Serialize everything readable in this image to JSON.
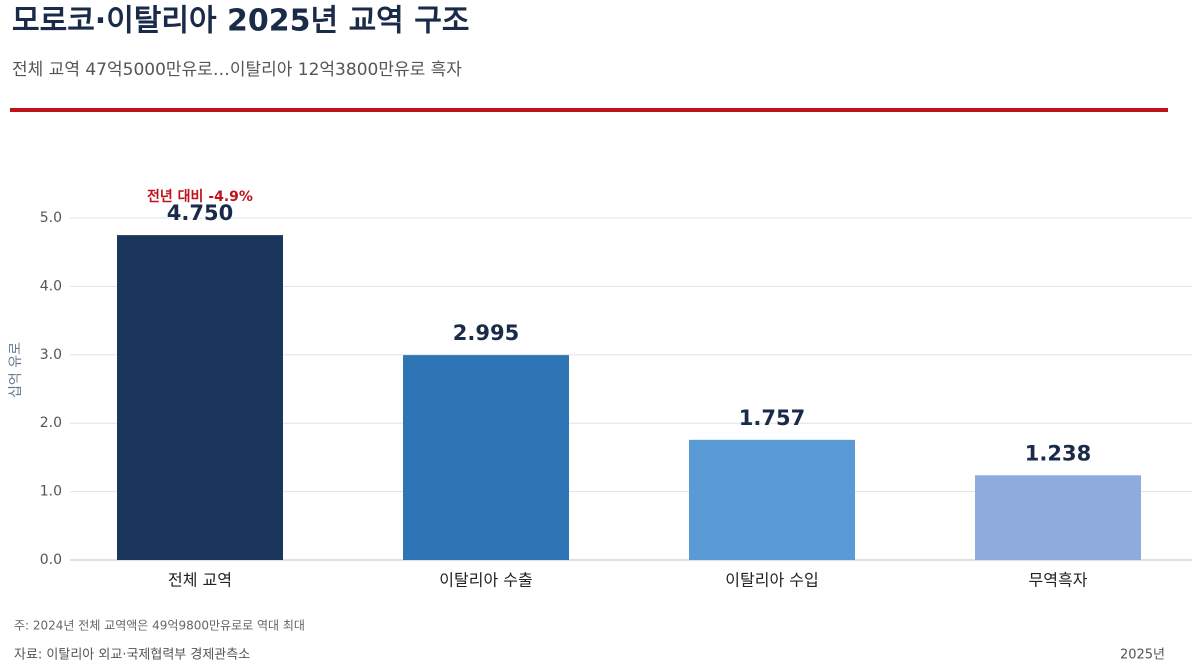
{
  "chart_data": {
    "type": "bar",
    "title": "모로코·이탈리아 2025년 교역 구조",
    "subtitle": "전체 교역 47억5000만유로…이탈리아 12억3800만유로 흑자",
    "y_label": "십억 유로",
    "categories": [
      "전체 교역",
      "이탈리아 수출",
      "이탈리아 수입",
      "무역흑자"
    ],
    "values": [
      4.75,
      2.995,
      1.757,
      1.238
    ],
    "value_labels": [
      "4.750",
      "2.995",
      "1.757",
      "1.238"
    ],
    "colors": [
      "#1b365d",
      "#2e75b6",
      "#5b9bd5",
      "#8faadc"
    ],
    "annotation": "전년 대비 -4.9%",
    "ylim": [
      0,
      5
    ],
    "yticks": [
      {
        "value": 0,
        "label": "0.0"
      },
      {
        "value": 1,
        "label": "1.0"
      },
      {
        "value": 2,
        "label": "2.0"
      },
      {
        "value": 3,
        "label": "3.0"
      },
      {
        "value": 4,
        "label": "4.0"
      },
      {
        "value": 5,
        "label": "5.0"
      }
    ],
    "grid": true,
    "note": "주: 2024년 전체 교역액은 49억9800만유로로 역대 최대",
    "source": "자료: 이탈리아 외교·국제협력부 경제관측소",
    "date": "2025년"
  }
}
